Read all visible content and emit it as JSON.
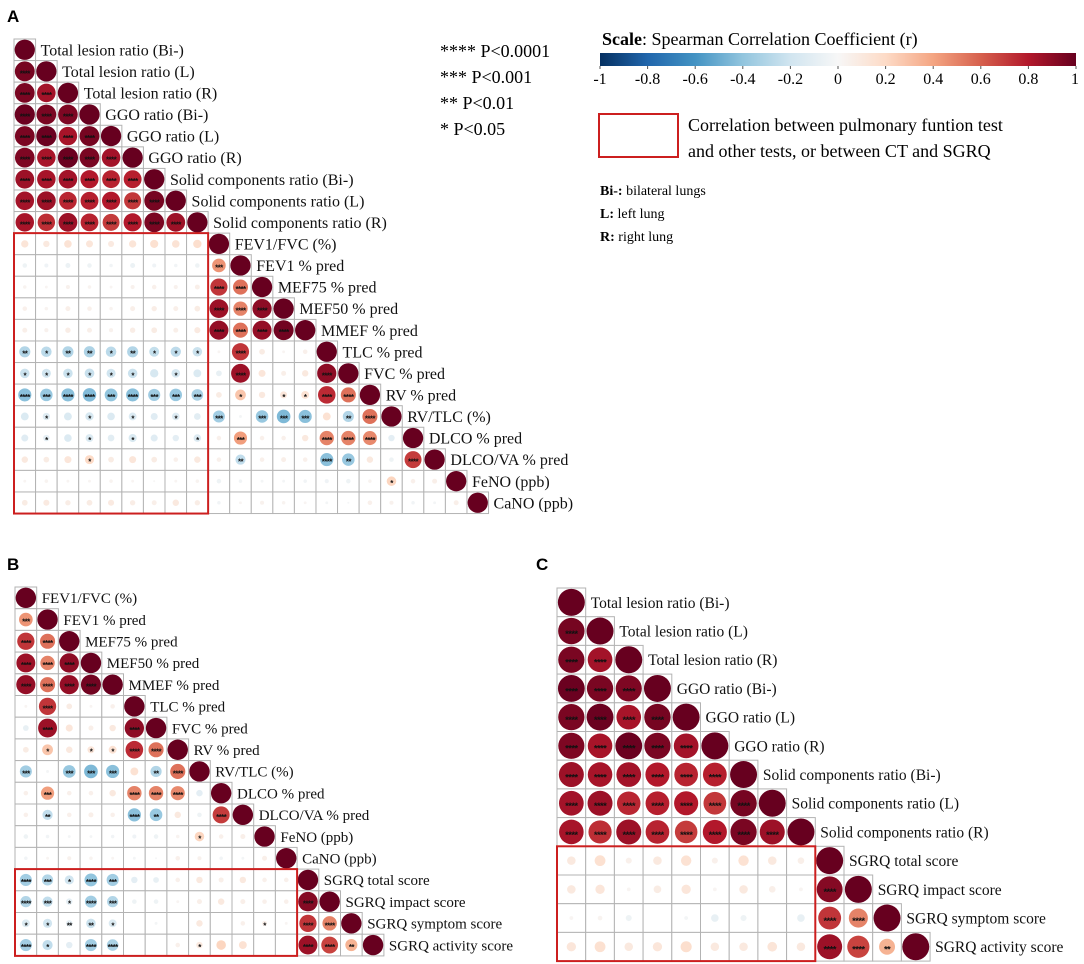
{
  "legend": {
    "significance": [
      "**** P<0.0001",
      "*** P<0.001",
      "** P<0.01",
      "* P<0.05"
    ],
    "scale_title_bold": "Scale",
    "scale_title_rest": ": Spearman Correlation Coefficient (r)",
    "box_text": [
      "Correlation between pulmonary funtion test",
      "and other tests, or between CT and SGRQ"
    ],
    "abbreviations": [
      {
        "key": "Bi-:",
        "text": " bilateral lungs"
      },
      {
        "key": "L:",
        "text": " left lung"
      },
      {
        "key": "R:",
        "text": " right lung"
      }
    ],
    "highlight_color": "#cc1f1f",
    "grid_color": "#b3b3b3"
  },
  "colorscale": {
    "min": -1,
    "max": 1,
    "ticks": [
      "-1",
      "-0.8",
      "-0.6",
      "-0.4",
      "-0.2",
      "0",
      "0.2",
      "0.4",
      "0.6",
      "0.8",
      "1"
    ],
    "colors": [
      "#053061",
      "#2166ac",
      "#4393c3",
      "#92c5de",
      "#d1e5f0",
      "#f7f7f7",
      "#fddbc7",
      "#f4a582",
      "#d6604d",
      "#b2182b",
      "#67001f"
    ]
  },
  "chart_data": [
    {
      "panel": "A",
      "type": "heatmap",
      "method": "circle, lower triangle, Spearman r",
      "variables": [
        "Total lesion ratio (Bi-)",
        "Total lesion ratio (L)",
        "Total lesion ratio (R)",
        "GGO ratio (Bi-)",
        "GGO ratio (L)",
        "GGO ratio (R)",
        "Solid components ratio (Bi-)",
        "Solid components ratio (L)",
        "Solid components ratio (R)",
        "FEV1/FVC (%)",
        "FEV1 % pred",
        "MEF75 % pred",
        "MEF50 % pred",
        "MMEF % pred",
        "TLC % pred",
        "FVC % pred",
        "RV % pred",
        "RV/TLC (%)",
        "DLCO % pred",
        "DLCO/VA % pred",
        "FeNO (ppb)",
        "CaNO (ppb)"
      ],
      "highlight_block": {
        "row_from": 9,
        "row_to": 21,
        "col_from": 0,
        "col_to": 8
      },
      "r": [
        [],
        [
          0.96
        ],
        [
          0.95,
          0.84
        ],
        [
          0.99,
          0.95,
          0.94
        ],
        [
          0.95,
          0.99,
          0.83,
          0.96
        ],
        [
          0.94,
          0.83,
          0.99,
          0.95,
          0.84
        ],
        [
          0.86,
          0.83,
          0.84,
          0.8,
          0.77,
          0.78
        ],
        [
          0.84,
          0.86,
          0.76,
          0.78,
          0.8,
          0.71,
          0.96
        ],
        [
          0.83,
          0.74,
          0.86,
          0.77,
          0.7,
          0.8,
          0.95,
          0.86
        ],
        [
          0.13,
          0.1,
          0.14,
          0.12,
          0.09,
          0.13,
          0.16,
          0.14,
          0.17
        ],
        [
          -0.05,
          -0.04,
          -0.06,
          -0.05,
          -0.03,
          -0.06,
          -0.04,
          -0.03,
          -0.05,
          0.45
        ],
        [
          0.03,
          0.02,
          0.04,
          0.03,
          0.02,
          0.04,
          0.05,
          0.04,
          0.06,
          0.72,
          0.55
        ],
        [
          0.05,
          0.03,
          0.06,
          0.05,
          0.03,
          0.06,
          0.07,
          0.06,
          0.08,
          0.86,
          0.5,
          0.9
        ],
        [
          0.06,
          0.04,
          0.07,
          0.06,
          0.04,
          0.07,
          0.08,
          0.06,
          0.09,
          0.88,
          0.55,
          0.88,
          0.97
        ],
        [
          -0.3,
          -0.27,
          -0.3,
          -0.31,
          -0.27,
          -0.3,
          -0.24,
          -0.26,
          -0.22,
          0.02,
          0.72,
          0.08,
          0.02,
          0.05
        ],
        [
          -0.22,
          -0.2,
          -0.22,
          -0.23,
          -0.2,
          -0.22,
          -0.17,
          -0.18,
          -0.15,
          -0.08,
          0.86,
          0.12,
          0.06,
          0.1,
          0.9
        ],
        [
          -0.42,
          -0.38,
          -0.42,
          -0.44,
          -0.4,
          -0.42,
          -0.36,
          -0.38,
          -0.33,
          0.08,
          0.28,
          0.1,
          0.12,
          0.15,
          0.75,
          0.55
        ],
        [
          -0.15,
          -0.13,
          -0.15,
          -0.17,
          -0.14,
          -0.15,
          -0.12,
          -0.14,
          -0.11,
          -0.35,
          -0.02,
          -0.38,
          -0.45,
          -0.42,
          0.15,
          -0.3,
          0.55
        ],
        [
          -0.12,
          -0.1,
          -0.14,
          -0.15,
          -0.11,
          -0.16,
          -0.12,
          -0.1,
          -0.14,
          0.05,
          0.42,
          0.05,
          0.05,
          0.1,
          0.5,
          0.5,
          0.48,
          -0.1
        ],
        [
          0.1,
          0.08,
          0.12,
          0.2,
          0.08,
          0.12,
          0.08,
          0.05,
          0.1,
          0.05,
          -0.25,
          0.05,
          0.06,
          0.05,
          -0.42,
          -0.38,
          0.1,
          -0.05,
          0.7
        ],
        [
          0.02,
          0.03,
          0.02,
          0.02,
          0.03,
          0.02,
          0.01,
          0.02,
          0.03,
          -0.05,
          -0.03,
          -0.02,
          -0.02,
          -0.03,
          -0.04,
          -0.05,
          0.03,
          0.22,
          0.05,
          0.06
        ],
        [
          0.08,
          0.09,
          0.07,
          0.08,
          0.09,
          0.07,
          0.06,
          0.1,
          0.07,
          -0.03,
          0.02,
          0.04,
          0.03,
          0.02,
          -0.02,
          -0.01,
          0.05,
          0.04,
          -0.03,
          -0.02,
          0.06
        ]
      ],
      "sig": [
        [],
        [
          4
        ],
        [
          4,
          4
        ],
        [
          4,
          4,
          4
        ],
        [
          4,
          4,
          4,
          4
        ],
        [
          4,
          4,
          4,
          4,
          4
        ],
        [
          4,
          4,
          4,
          4,
          4,
          4
        ],
        [
          4,
          4,
          4,
          4,
          4,
          4,
          4
        ],
        [
          4,
          4,
          4,
          4,
          4,
          4,
          4,
          4
        ],
        [
          0,
          0,
          0,
          0,
          0,
          0,
          0,
          0,
          0
        ],
        [
          0,
          0,
          0,
          0,
          0,
          0,
          0,
          0,
          0,
          3
        ],
        [
          0,
          0,
          0,
          0,
          0,
          0,
          0,
          0,
          0,
          4,
          4
        ],
        [
          0,
          0,
          0,
          0,
          0,
          0,
          0,
          0,
          0,
          4,
          4,
          4
        ],
        [
          0,
          0,
          0,
          0,
          0,
          0,
          0,
          0,
          0,
          4,
          4,
          4,
          4
        ],
        [
          2,
          1,
          2,
          2,
          1,
          2,
          1,
          1,
          1,
          0,
          4,
          0,
          0,
          0
        ],
        [
          1,
          1,
          1,
          1,
          1,
          1,
          0,
          1,
          0,
          0,
          4,
          0,
          0,
          0,
          4
        ],
        [
          4,
          3,
          4,
          4,
          3,
          4,
          3,
          3,
          3,
          0,
          1,
          0,
          1,
          1,
          4,
          4
        ],
        [
          0,
          1,
          0,
          1,
          0,
          1,
          0,
          1,
          0,
          3,
          0,
          3,
          3,
          3,
          0,
          2,
          4
        ],
        [
          0,
          1,
          0,
          1,
          0,
          1,
          0,
          0,
          1,
          0,
          3,
          0,
          0,
          0,
          4,
          4,
          4,
          0
        ],
        [
          0,
          0,
          0,
          1,
          0,
          0,
          0,
          0,
          0,
          0,
          2,
          0,
          0,
          0,
          4,
          2,
          0,
          0,
          4
        ],
        [
          0,
          0,
          0,
          0,
          0,
          0,
          0,
          0,
          0,
          0,
          0,
          0,
          0,
          0,
          0,
          0,
          0,
          1,
          0,
          0
        ],
        [
          0,
          0,
          0,
          0,
          0,
          0,
          0,
          0,
          0,
          0,
          0,
          0,
          0,
          0,
          0,
          0,
          0,
          0,
          0,
          0,
          0
        ]
      ]
    },
    {
      "panel": "B",
      "type": "heatmap",
      "method": "circle, lower triangle, Spearman r",
      "variables": [
        "FEV1/FVC (%)",
        "FEV1 % pred",
        "MEF75 % pred",
        "MEF50 % pred",
        "MMEF % pred",
        "TLC % pred",
        "FVC % pred",
        "RV % pred",
        "RV/TLC (%)",
        "DLCO % pred",
        "DLCO/VA % pred",
        "FeNO (ppb)",
        "CaNO (ppb)",
        "SGRQ total score",
        "SGRQ impact score",
        "SGRQ symptom score",
        "SGRQ activity score"
      ],
      "highlight_block": {
        "row_from": 13,
        "row_to": 16,
        "col_from": 0,
        "col_to": 12
      },
      "r": [
        [],
        [
          0.45
        ],
        [
          0.72,
          0.55
        ],
        [
          0.86,
          0.5,
          0.9
        ],
        [
          0.88,
          0.55,
          0.88,
          0.97
        ],
        [
          0.02,
          0.72,
          0.08,
          0.02,
          0.05
        ],
        [
          -0.08,
          0.86,
          0.12,
          0.06,
          0.1,
          0.9
        ],
        [
          0.08,
          0.28,
          0.1,
          0.12,
          0.15,
          0.75,
          0.55
        ],
        [
          -0.35,
          -0.02,
          -0.38,
          -0.45,
          -0.42,
          0.15,
          -0.3,
          0.55
        ],
        [
          0.05,
          0.42,
          0.05,
          0.05,
          0.1,
          0.5,
          0.5,
          0.48,
          -0.1
        ],
        [
          0.05,
          -0.25,
          0.05,
          0.06,
          0.05,
          -0.42,
          -0.38,
          0.1,
          -0.05,
          0.7
        ],
        [
          -0.05,
          -0.03,
          -0.02,
          -0.02,
          -0.03,
          -0.04,
          -0.05,
          0.03,
          0.22,
          0.05,
          0.06
        ],
        [
          -0.03,
          0.02,
          0.04,
          0.03,
          0.02,
          -0.02,
          -0.01,
          0.05,
          0.04,
          -0.03,
          -0.02,
          0.06
        ],
        [
          -0.35,
          -0.3,
          -0.2,
          -0.4,
          -0.35,
          -0.1,
          -0.08,
          0.05,
          0.1,
          0.06,
          0.1,
          0.05,
          0.05
        ],
        [
          -0.3,
          -0.25,
          -0.1,
          -0.35,
          -0.3,
          -0.05,
          -0.05,
          0.02,
          0.06,
          0.1,
          0.06,
          0.05,
          0.05,
          0.92
        ],
        [
          -0.15,
          -0.2,
          -0.1,
          -0.22,
          -0.15,
          0.0,
          -0.02,
          0.0,
          0.1,
          0.0,
          0.05,
          0.06,
          0.02,
          0.72,
          0.5
        ],
        [
          -0.35,
          -0.25,
          -0.1,
          -0.35,
          -0.32,
          0.0,
          0.0,
          0.05,
          0.1,
          0.22,
          0.15,
          0.0,
          0.0,
          0.86,
          0.68,
          0.35
        ]
      ],
      "sig": [
        [],
        [
          3
        ],
        [
          4,
          4
        ],
        [
          4,
          4,
          4
        ],
        [
          4,
          4,
          4,
          4
        ],
        [
          0,
          4,
          0,
          0,
          0
        ],
        [
          0,
          4,
          0,
          0,
          0,
          4
        ],
        [
          0,
          1,
          0,
          1,
          1,
          4,
          4
        ],
        [
          3,
          0,
          3,
          3,
          3,
          0,
          2,
          4
        ],
        [
          0,
          3,
          0,
          0,
          0,
          4,
          4,
          4,
          0
        ],
        [
          0,
          2,
          0,
          0,
          0,
          4,
          2,
          0,
          0,
          4
        ],
        [
          0,
          0,
          0,
          0,
          0,
          0,
          0,
          0,
          1,
          0,
          0
        ],
        [
          0,
          0,
          0,
          0,
          0,
          0,
          0,
          0,
          0,
          0,
          0,
          0
        ],
        [
          4,
          3,
          1,
          4,
          3,
          0,
          0,
          0,
          0,
          0,
          0,
          0,
          0
        ],
        [
          4,
          3,
          1,
          4,
          3,
          0,
          0,
          0,
          0,
          0,
          0,
          0,
          0,
          4
        ],
        [
          1,
          1,
          2,
          2,
          1,
          0,
          0,
          0,
          0,
          0,
          0,
          1,
          0,
          4,
          4
        ],
        [
          4,
          1,
          0,
          4,
          4,
          0,
          0,
          0,
          1,
          0,
          0,
          0,
          0,
          4,
          4,
          2
        ]
      ]
    },
    {
      "panel": "C",
      "type": "heatmap",
      "method": "circle, lower triangle, Spearman r",
      "variables": [
        "Total lesion ratio (Bi-)",
        "Total lesion ratio (L)",
        "Total lesion ratio (R)",
        "GGO ratio (Bi-)",
        "GGO ratio (L)",
        "GGO ratio (R)",
        "Solid components ratio (Bi-)",
        "Solid components ratio (L)",
        "Solid components ratio (R)",
        "SGRQ total score",
        "SGRQ impact score",
        "SGRQ symptom score",
        "SGRQ activity score"
      ],
      "highlight_block": {
        "row_from": 9,
        "row_to": 12,
        "col_from": 0,
        "col_to": 8
      },
      "r": [
        [],
        [
          0.96
        ],
        [
          0.95,
          0.84
        ],
        [
          0.99,
          0.95,
          0.94
        ],
        [
          0.95,
          0.99,
          0.83,
          0.96
        ],
        [
          0.94,
          0.83,
          0.99,
          0.95,
          0.84
        ],
        [
          0.86,
          0.83,
          0.84,
          0.8,
          0.77,
          0.78
        ],
        [
          0.84,
          0.86,
          0.76,
          0.78,
          0.8,
          0.71,
          0.96
        ],
        [
          0.83,
          0.74,
          0.86,
          0.77,
          0.7,
          0.8,
          0.95,
          0.86
        ],
        [
          0.1,
          0.16,
          0.05,
          0.1,
          0.15,
          0.05,
          0.15,
          0.1,
          0.06
        ],
        [
          0.1,
          0.12,
          0.02,
          0.08,
          0.12,
          0.02,
          0.1,
          0.06,
          0.02,
          0.92
        ],
        [
          0.02,
          0.03,
          -0.05,
          0.0,
          -0.02,
          -0.08,
          -0.05,
          0.0,
          -0.08,
          0.72,
          0.5
        ],
        [
          0.12,
          0.16,
          0.1,
          0.12,
          0.17,
          0.1,
          0.1,
          0.13,
          0.1,
          0.86,
          0.68,
          0.35
        ]
      ],
      "sig": [
        [],
        [
          4
        ],
        [
          4,
          4
        ],
        [
          4,
          4,
          4
        ],
        [
          4,
          4,
          4,
          4
        ],
        [
          4,
          4,
          4,
          4,
          4
        ],
        [
          4,
          4,
          4,
          4,
          4,
          4
        ],
        [
          4,
          4,
          4,
          4,
          4,
          4,
          4
        ],
        [
          4,
          4,
          4,
          4,
          4,
          4,
          4,
          4
        ],
        [
          0,
          0,
          0,
          0,
          0,
          0,
          0,
          0,
          0
        ],
        [
          0,
          0,
          0,
          0,
          0,
          0,
          0,
          0,
          0,
          4
        ],
        [
          0,
          0,
          0,
          0,
          0,
          0,
          0,
          0,
          0,
          4,
          4
        ],
        [
          0,
          0,
          0,
          0,
          0,
          0,
          0,
          0,
          0,
          4,
          4,
          2
        ]
      ]
    }
  ]
}
